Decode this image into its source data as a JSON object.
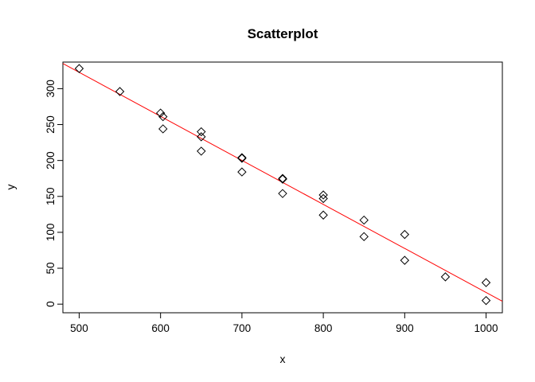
{
  "chart_data": {
    "type": "scatter",
    "title": "Scatterplot",
    "xlabel": "x",
    "ylabel": "y",
    "xlim": [
      480,
      1020
    ],
    "ylim": [
      -12,
      337
    ],
    "x_ticks": [
      500,
      600,
      700,
      800,
      900,
      1000
    ],
    "y_ticks": [
      0,
      50,
      100,
      150,
      200,
      250,
      300
    ],
    "grid": false,
    "legend": "none",
    "marker": "open-diamond",
    "point_color": "#000000",
    "fit_line_color": "#ff0000",
    "points": [
      {
        "x": 500,
        "y": 328
      },
      {
        "x": 550,
        "y": 296
      },
      {
        "x": 600,
        "y": 266
      },
      {
        "x": 603,
        "y": 261
      },
      {
        "x": 603,
        "y": 244
      },
      {
        "x": 650,
        "y": 240
      },
      {
        "x": 650,
        "y": 233
      },
      {
        "x": 650,
        "y": 213
      },
      {
        "x": 700,
        "y": 204
      },
      {
        "x": 700,
        "y": 203
      },
      {
        "x": 700,
        "y": 184
      },
      {
        "x": 750,
        "y": 175
      },
      {
        "x": 750,
        "y": 174
      },
      {
        "x": 750,
        "y": 154
      },
      {
        "x": 800,
        "y": 152
      },
      {
        "x": 800,
        "y": 147
      },
      {
        "x": 800,
        "y": 124
      },
      {
        "x": 850,
        "y": 117
      },
      {
        "x": 850,
        "y": 94
      },
      {
        "x": 900,
        "y": 97
      },
      {
        "x": 900,
        "y": 61
      },
      {
        "x": 950,
        "y": 38
      },
      {
        "x": 1000,
        "y": 30
      },
      {
        "x": 1000,
        "y": 5
      }
    ],
    "fit_line": {
      "x": [
        480,
        1020
      ],
      "y": [
        335,
        4
      ]
    }
  }
}
